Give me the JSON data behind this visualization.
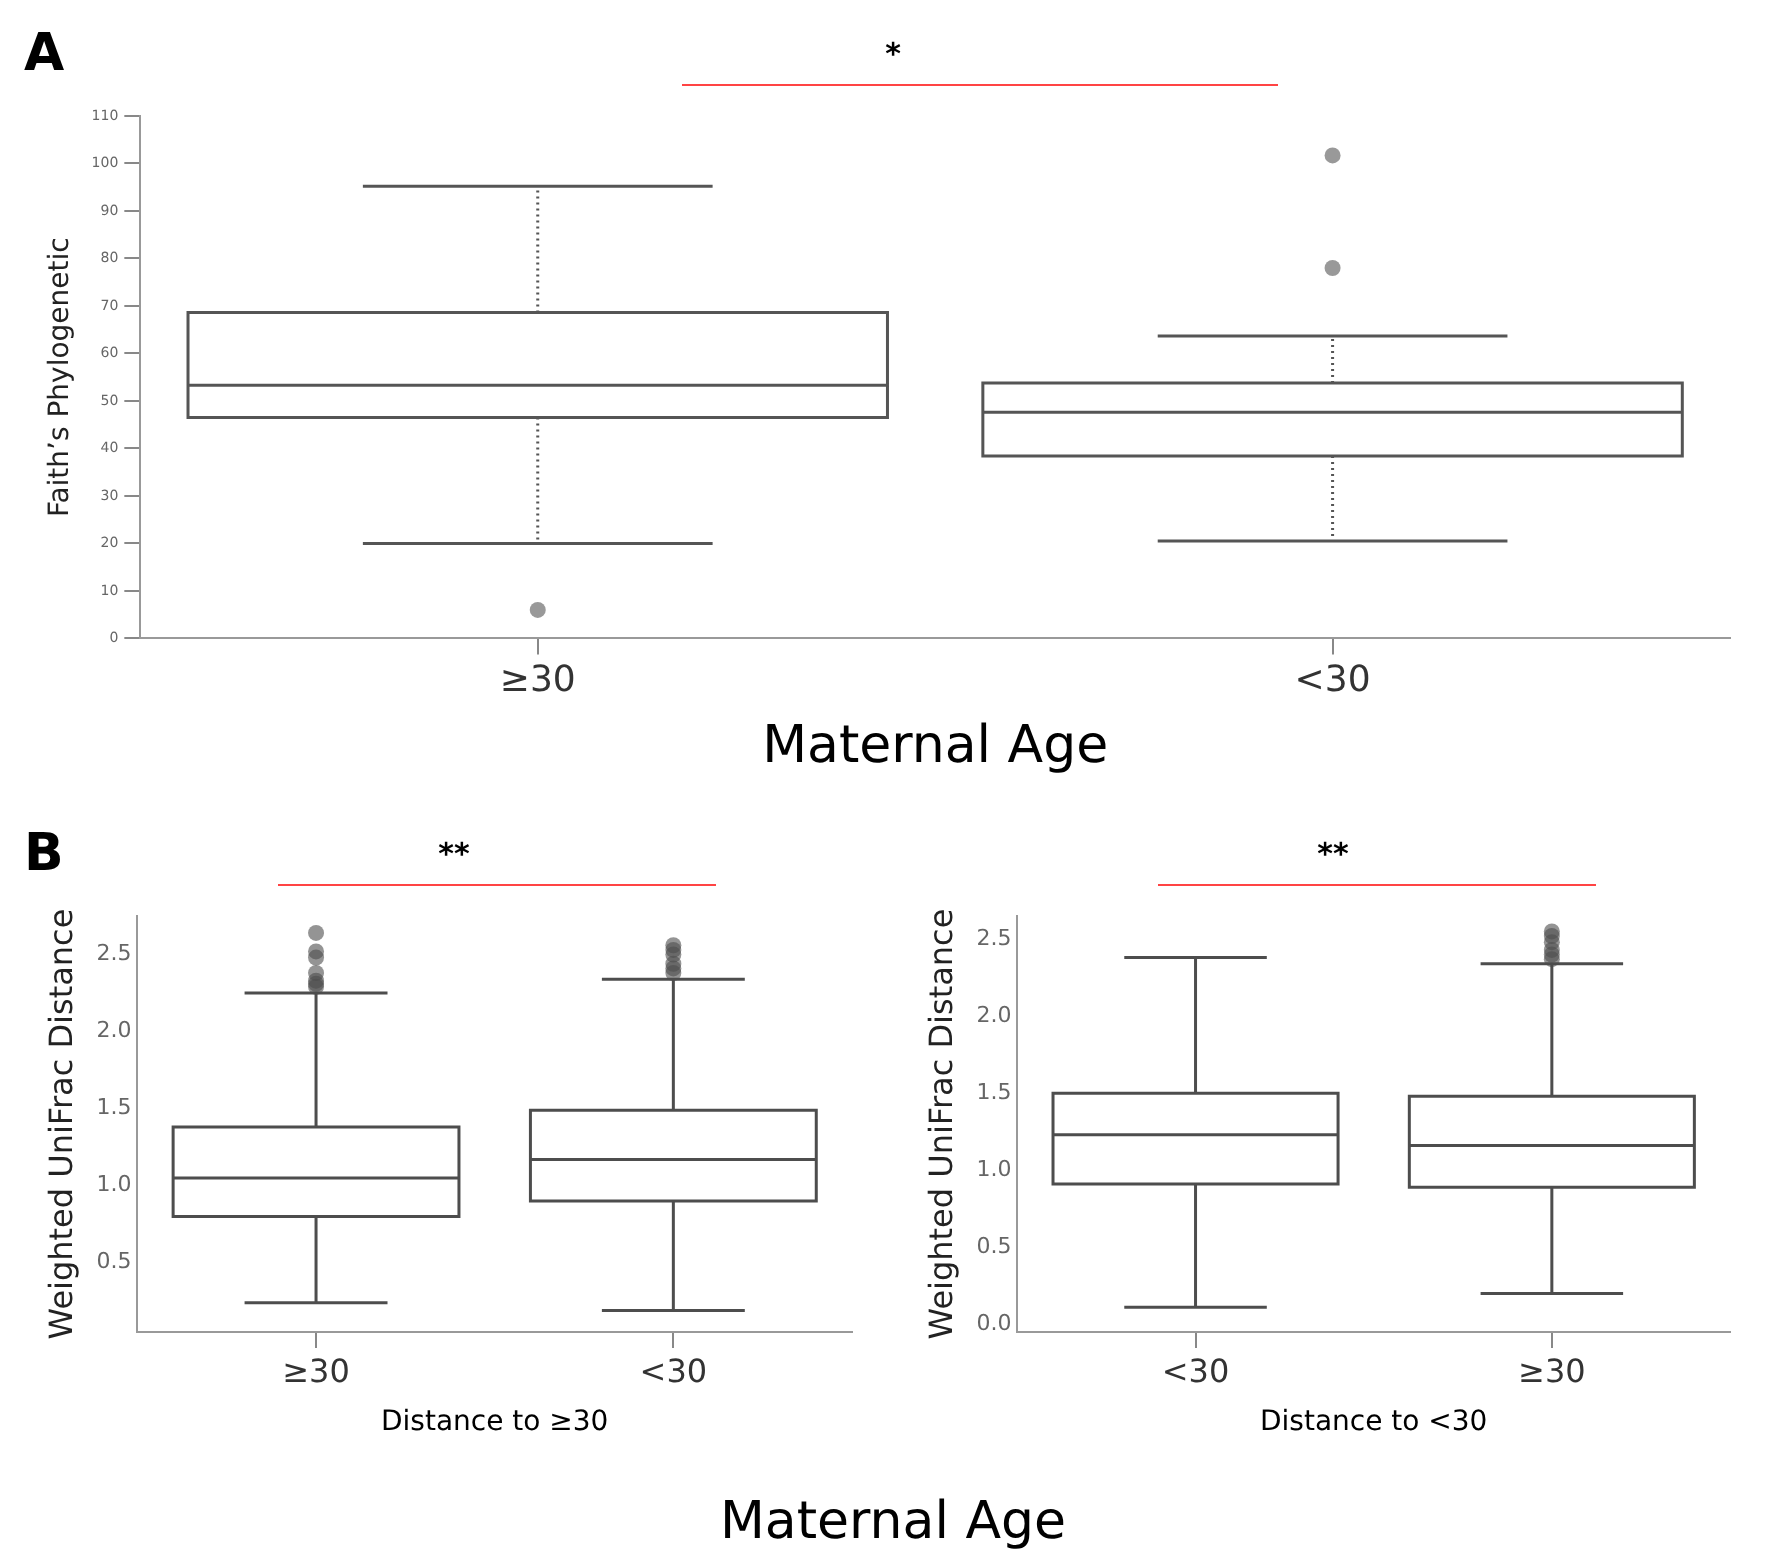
{
  "chart_data": [
    {
      "type": "box",
      "title": "A",
      "categories": [
        "≥30",
        "<30"
      ],
      "ylabel": "Faith’s Phylogenetic",
      "xlabel": "Maternal Age",
      "color": "#555555",
      "line_style": "dotted",
      "ylim": [
        0,
        110
      ],
      "yticks": [
        0,
        10,
        20,
        30,
        40,
        50,
        60,
        70,
        80,
        90,
        100,
        110
      ],
      "boxes": [
        {
          "low": 20,
          "q1": 46.5,
          "median": 53.3,
          "q3": 68.6,
          "high": 95.2,
          "outliers": [
            6
          ]
        },
        {
          "low": 20.5,
          "q1": 38.4,
          "median": 47.6,
          "q3": 53.8,
          "high": 63.7,
          "outliers": [
            78,
            101.7
          ]
        }
      ],
      "annotations": [
        "*"
      ]
    },
    {
      "type": "box",
      "title": "B",
      "categories": [
        "≥30",
        "<30"
      ],
      "ylabel": "Weighted UniFrac Distance",
      "xlabel": "Distance to ≥30",
      "color": "#4d4d4d",
      "ylim": [
        0.05,
        2.75
      ],
      "yticks": [
        0.5,
        {
          "value": 1,
          "label": "1.0"
        },
        1.5,
        {
          "value": 2,
          "label": "2.0"
        },
        2.5
      ],
      "boxes": [
        {
          "low": 0.24,
          "q1": 0.8,
          "median": 1.05,
          "q3": 1.38,
          "high": 2.25,
          "outliers": [
            2.29,
            2.31,
            2.33,
            2.38,
            2.48,
            2.52,
            2.64
          ]
        },
        {
          "low": 0.19,
          "q1": 0.9,
          "median": 1.17,
          "q3": 1.49,
          "high": 2.34,
          "outliers": [
            2.38,
            2.41,
            2.44,
            2.5,
            2.53,
            2.56
          ]
        }
      ],
      "annotations": [
        "**",
        "Maternal Age"
      ]
    },
    {
      "type": "box",
      "categories": [
        "<30",
        "≥30"
      ],
      "ylabel": "Weighted UniFrac Distance",
      "xlabel": "Distance to <30",
      "color": "#4d4d4d",
      "ylim": [
        -0.05,
        2.65
      ],
      "yticks": [
        {
          "value": 0,
          "label": "0.0"
        },
        0.5,
        {
          "value": 1,
          "label": "1.0"
        },
        1.5,
        {
          "value": 2,
          "label": "2.0"
        },
        2.5
      ],
      "boxes": [
        {
          "low": 0.11,
          "q1": 0.91,
          "median": 1.23,
          "q3": 1.5,
          "high": 2.38
        },
        {
          "low": 0.2,
          "q1": 0.89,
          "median": 1.16,
          "q3": 1.48,
          "high": 2.34,
          "outliers": [
            2.37,
            2.4,
            2.43,
            2.48,
            2.52,
            2.55
          ]
        }
      ],
      "annotations": [
        "**"
      ]
    }
  ]
}
